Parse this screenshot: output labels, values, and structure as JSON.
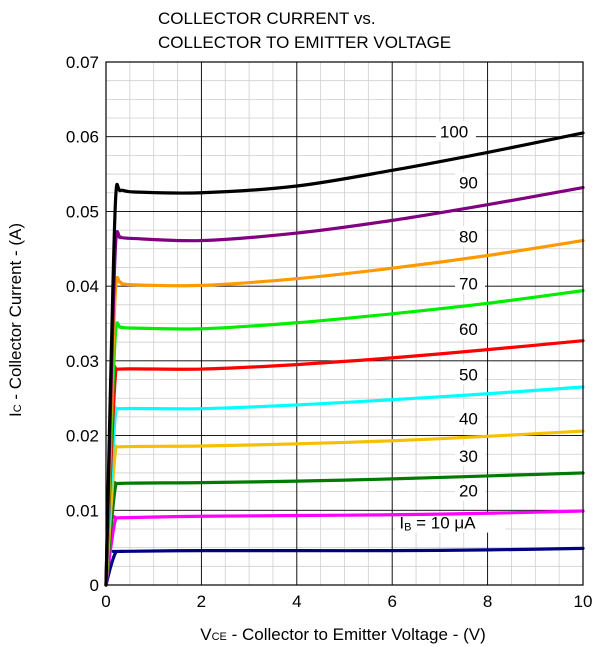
{
  "chart_data": {
    "type": "line",
    "title": [
      "COLLECTOR CURRENT vs.",
      "COLLECTOR TO EMITTER VOLTAGE"
    ],
    "xlabel": {
      "symbol": "V",
      "subscript": "CE",
      "text": " - Collector to Emitter Voltage - (V)"
    },
    "ylabel": {
      "symbol": "I",
      "subscript": "C",
      "text": " - Collector Current - (A)"
    },
    "xlim": [
      0,
      10
    ],
    "ylim": [
      0,
      0.07
    ],
    "xticks": [
      0,
      2,
      4,
      6,
      8,
      10
    ],
    "xtick_labels": [
      "0",
      "2",
      "4",
      "6",
      "8",
      "10"
    ],
    "yticks": [
      0,
      0.01,
      0.02,
      0.03,
      0.04,
      0.05,
      0.06,
      0.07
    ],
    "ytick_labels": [
      "0",
      "0.01",
      "0.02",
      "0.03",
      "0.04",
      "0.05",
      "0.06",
      "0.07"
    ],
    "grid": true,
    "series": [
      {
        "name": "10",
        "label_text": "I B = 10 μA",
        "color": "#000080",
        "x": [
          0,
          0.1,
          0.2,
          0.3,
          2,
          4,
          6,
          8,
          10
        ],
        "y": [
          0,
          0.0025,
          0.0043,
          0.0045,
          0.0046,
          0.0046,
          0.0046,
          0.0047,
          0.0049
        ]
      },
      {
        "name": "20",
        "label_text": "20",
        "color": "#ff00ff",
        "x": [
          0,
          0.1,
          0.2,
          0.3,
          2,
          4,
          6,
          8,
          10
        ],
        "y": [
          0,
          0.005,
          0.0088,
          0.009,
          0.0092,
          0.0093,
          0.0094,
          0.0096,
          0.0099
        ]
      },
      {
        "name": "30",
        "label_text": "30",
        "color": "#007a00",
        "x": [
          0,
          0.1,
          0.2,
          0.3,
          2,
          4,
          6,
          8,
          10
        ],
        "y": [
          0,
          0.0075,
          0.0132,
          0.0136,
          0.0137,
          0.0139,
          0.0142,
          0.0146,
          0.015
        ]
      },
      {
        "name": "40",
        "label_text": "40",
        "color": "#f5c000",
        "x": [
          0,
          0.1,
          0.2,
          0.3,
          2,
          4,
          6,
          8,
          10
        ],
        "y": [
          0,
          0.01,
          0.018,
          0.0185,
          0.0186,
          0.0189,
          0.0193,
          0.0199,
          0.0206
        ]
      },
      {
        "name": "50",
        "label_text": "50",
        "color": "#00ffff",
        "x": [
          0,
          0.1,
          0.2,
          0.3,
          2,
          4,
          6,
          8,
          10
        ],
        "y": [
          0,
          0.013,
          0.023,
          0.0236,
          0.0236,
          0.0241,
          0.0248,
          0.0256,
          0.0265
        ]
      },
      {
        "name": "60",
        "label_text": "60",
        "color": "#ff0000",
        "x": [
          0,
          0.1,
          0.2,
          0.3,
          2,
          4,
          6,
          8,
          10
        ],
        "y": [
          0,
          0.016,
          0.0282,
          0.0289,
          0.0289,
          0.0295,
          0.0304,
          0.0315,
          0.0327
        ]
      },
      {
        "name": "70",
        "label_text": "70",
        "color": "#00ee00",
        "x": [
          0,
          0.1,
          0.2,
          0.3,
          0.5,
          2,
          4,
          6,
          8,
          10
        ],
        "y": [
          0,
          0.019,
          0.0338,
          0.0345,
          0.0344,
          0.0343,
          0.0351,
          0.0363,
          0.0377,
          0.0394
        ]
      },
      {
        "name": "80",
        "label_text": "80",
        "color": "#ff9900",
        "x": [
          0,
          0.1,
          0.2,
          0.3,
          0.5,
          2,
          4,
          6,
          8,
          10
        ],
        "y": [
          0,
          0.022,
          0.0396,
          0.0405,
          0.0402,
          0.0401,
          0.041,
          0.0424,
          0.0441,
          0.0461
        ]
      },
      {
        "name": "90",
        "label_text": "90",
        "color": "#800080",
        "x": [
          0,
          0.1,
          0.2,
          0.3,
          0.5,
          2,
          4,
          6,
          8,
          10
        ],
        "y": [
          0,
          0.025,
          0.0455,
          0.0465,
          0.0464,
          0.0461,
          0.0471,
          0.0488,
          0.0509,
          0.0532
        ]
      },
      {
        "name": "100",
        "label_text": "100",
        "color": "#000000",
        "x": [
          0,
          0.1,
          0.2,
          0.3,
          0.6,
          2,
          4,
          6,
          8,
          10
        ],
        "y": [
          0,
          0.028,
          0.0515,
          0.0528,
          0.0526,
          0.0525,
          0.0534,
          0.0555,
          0.0579,
          0.0605
        ]
      }
    ]
  }
}
